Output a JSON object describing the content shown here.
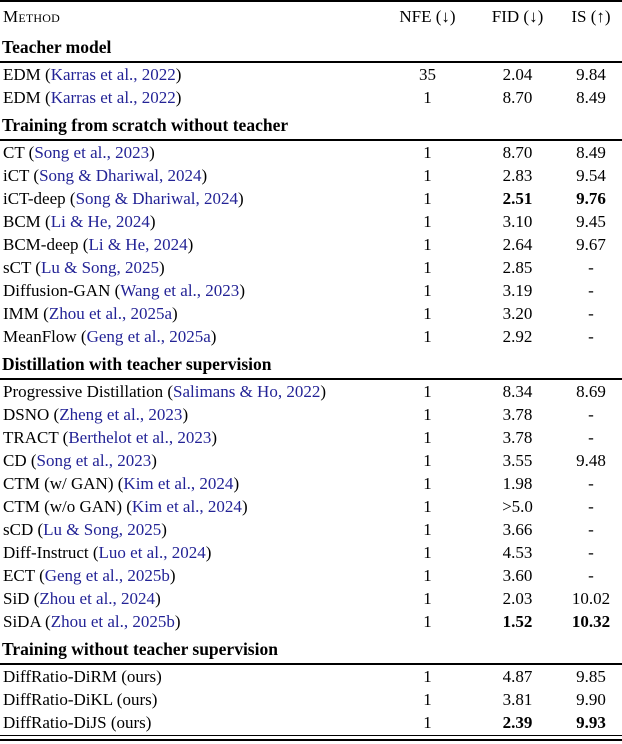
{
  "colors": {
    "citation": "#232396",
    "text": "#000000",
    "rule": "#000000"
  },
  "table": {
    "header": {
      "method": "Method",
      "nfe": "NFE (↓)",
      "fid": "FID (↓)",
      "is": "IS (↑)"
    },
    "sections": [
      {
        "title": "Teacher model",
        "rows": [
          {
            "label": "EDM",
            "cite": "Karras et al., 2022",
            "nfe": "35",
            "fid": "2.04",
            "is": "9.84"
          },
          {
            "label": "EDM",
            "cite": "Karras et al., 2022",
            "nfe": "1",
            "fid": "8.70",
            "is": "8.49"
          }
        ]
      },
      {
        "title": "Training from scratch without teacher",
        "rows": [
          {
            "label": "CT",
            "cite": "Song et al., 2023",
            "nfe": "1",
            "fid": "8.70",
            "is": "8.49"
          },
          {
            "label": "iCT",
            "cite": "Song & Dhariwal, 2024",
            "nfe": "1",
            "fid": "2.83",
            "is": "9.54"
          },
          {
            "label": "iCT-deep",
            "cite": "Song & Dhariwal, 2024",
            "nfe": "1",
            "fid": "2.51",
            "is": "9.76",
            "bold_fid": true,
            "bold_is": true
          },
          {
            "label": "BCM",
            "cite": "Li & He, 2024",
            "nfe": "1",
            "fid": "3.10",
            "is": "9.45"
          },
          {
            "label": "BCM-deep",
            "cite": "Li & He, 2024",
            "nfe": "1",
            "fid": "2.64",
            "is": "9.67"
          },
          {
            "label": "sCT",
            "cite": "Lu & Song, 2025",
            "nfe": "1",
            "fid": "2.85",
            "is": "-"
          },
          {
            "label": "Diffusion-GAN",
            "cite": "Wang et al., 2023",
            "nfe": "1",
            "fid": "3.19",
            "is": "-"
          },
          {
            "label": "IMM",
            "cite": "Zhou et al., 2025a",
            "nfe": "1",
            "fid": "3.20",
            "is": "-"
          },
          {
            "label": "MeanFlow",
            "cite": "Geng et al., 2025a",
            "nfe": "1",
            "fid": "2.92",
            "is": "-"
          }
        ]
      },
      {
        "title": "Distillation with teacher supervision",
        "rows": [
          {
            "label": "Progressive Distillation",
            "cite": "Salimans & Ho, 2022",
            "nfe": "1",
            "fid": "8.34",
            "is": "8.69"
          },
          {
            "label": "DSNO",
            "cite": "Zheng et al., 2023",
            "nfe": "1",
            "fid": "3.78",
            "is": "-"
          },
          {
            "label": "TRACT",
            "cite": "Berthelot et al., 2023",
            "nfe": "1",
            "fid": "3.78",
            "is": "-"
          },
          {
            "label": "CD",
            "cite": "Song et al., 2023",
            "nfe": "1",
            "fid": "3.55",
            "is": "9.48"
          },
          {
            "label": "CTM (w/ GAN)",
            "cite": "Kim et al., 2024",
            "nfe": "1",
            "fid": "1.98",
            "is": "-"
          },
          {
            "label": "CTM (w/o GAN)",
            "cite": "Kim et al., 2024",
            "nfe": "1",
            "fid": ">5.0",
            "is": "-"
          },
          {
            "label": "sCD",
            "cite": "Lu & Song, 2025",
            "nfe": "1",
            "fid": "3.66",
            "is": "-"
          },
          {
            "label": "Diff-Instruct",
            "cite": "Luo et al., 2024",
            "nfe": "1",
            "fid": "4.53",
            "is": "-"
          },
          {
            "label": "ECT",
            "cite": "Geng et al., 2025b",
            "nfe": "1",
            "fid": "3.60",
            "is": "-"
          },
          {
            "label": "SiD",
            "cite": "Zhou et al., 2024",
            "nfe": "1",
            "fid": "2.03",
            "is": "10.02"
          },
          {
            "label": "SiDA",
            "cite": "Zhou et al., 2025b",
            "nfe": "1",
            "fid": "1.52",
            "is": "10.32",
            "bold_fid": true,
            "bold_is": true
          }
        ]
      },
      {
        "title": "Training without teacher supervision",
        "rows": [
          {
            "label": "DiffRatio-DiRM (ours)",
            "cite": null,
            "nfe": "1",
            "fid": "4.87",
            "is": "9.85"
          },
          {
            "label": "DiffRatio-DiKL (ours)",
            "cite": null,
            "nfe": "1",
            "fid": "3.81",
            "is": "9.90"
          },
          {
            "label": "DiffRatio-DiJS (ours)",
            "cite": null,
            "nfe": "1",
            "fid": "2.39",
            "is": "9.93",
            "bold_fid": true,
            "bold_is": true
          }
        ]
      }
    ]
  }
}
